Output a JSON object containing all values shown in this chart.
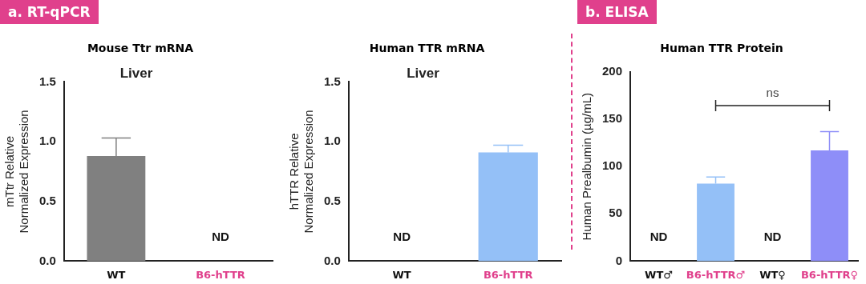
{
  "chart_data": [
    {
      "type": "bar",
      "title": "Mouse Ttr mRNA",
      "subtitle": "Liver",
      "ylabel": "mTtr Relative\nNormalized Expression",
      "categories": [
        "WT",
        "B6-hTTR"
      ],
      "values": [
        0.88,
        null
      ],
      "errors": [
        [
          0.88,
          1.03
        ],
        null
      ],
      "color": "#808080",
      "ylim": [
        0,
        1.5
      ],
      "yticks": [
        {
          "value": 0,
          "label": "0.0"
        },
        {
          "value": 0.5,
          "label": "0.5"
        },
        {
          "value": 1,
          "label": "1.0"
        },
        {
          "value": 1.5,
          "label": "1.5"
        }
      ],
      "grid": false,
      "legend": false,
      "annotations": [
        "a. RT-qPCR",
        "ND"
      ]
    },
    {
      "type": "bar",
      "title": "Human TTR mRNA",
      "subtitle": "Liver",
      "ylabel": "hTTR Relative\nNormalized Expression",
      "categories": [
        "WT",
        "B6-hTTR"
      ],
      "values": [
        null,
        0.91
      ],
      "errors": [
        null,
        [
          0.91,
          0.97
        ]
      ],
      "color": "#94c0f7",
      "ylim": [
        0,
        1.5
      ],
      "yticks": [
        {
          "value": 0,
          "label": "0.0"
        },
        {
          "value": 0.5,
          "label": "0.5"
        },
        {
          "value": 1,
          "label": "1.0"
        },
        {
          "value": 1.5,
          "label": "1.5"
        }
      ],
      "grid": false,
      "legend": false,
      "annotations": [
        "ND"
      ]
    },
    {
      "type": "bar",
      "title": "Human TTR Protein",
      "ylabel": "Human Prealbumin (µg/mL)",
      "categories": [
        "WT♂",
        "B6-hTTR♂",
        "WT♀",
        "B6-hTTR♀"
      ],
      "values": [
        null,
        82,
        null,
        117
      ],
      "errors": [
        null,
        [
          82,
          89
        ],
        null,
        [
          117,
          137
        ]
      ],
      "colors": [
        "#94c0f7",
        "#94c0f7",
        "#8e8ef8",
        "#8e8ef8"
      ],
      "ylim": [
        0,
        200
      ],
      "yticks": [
        0,
        50,
        100,
        150,
        200
      ],
      "grid": false,
      "legend": false,
      "annotations": [
        "b. ELISA",
        "ns",
        "ND",
        "ND"
      ]
    }
  ]
}
